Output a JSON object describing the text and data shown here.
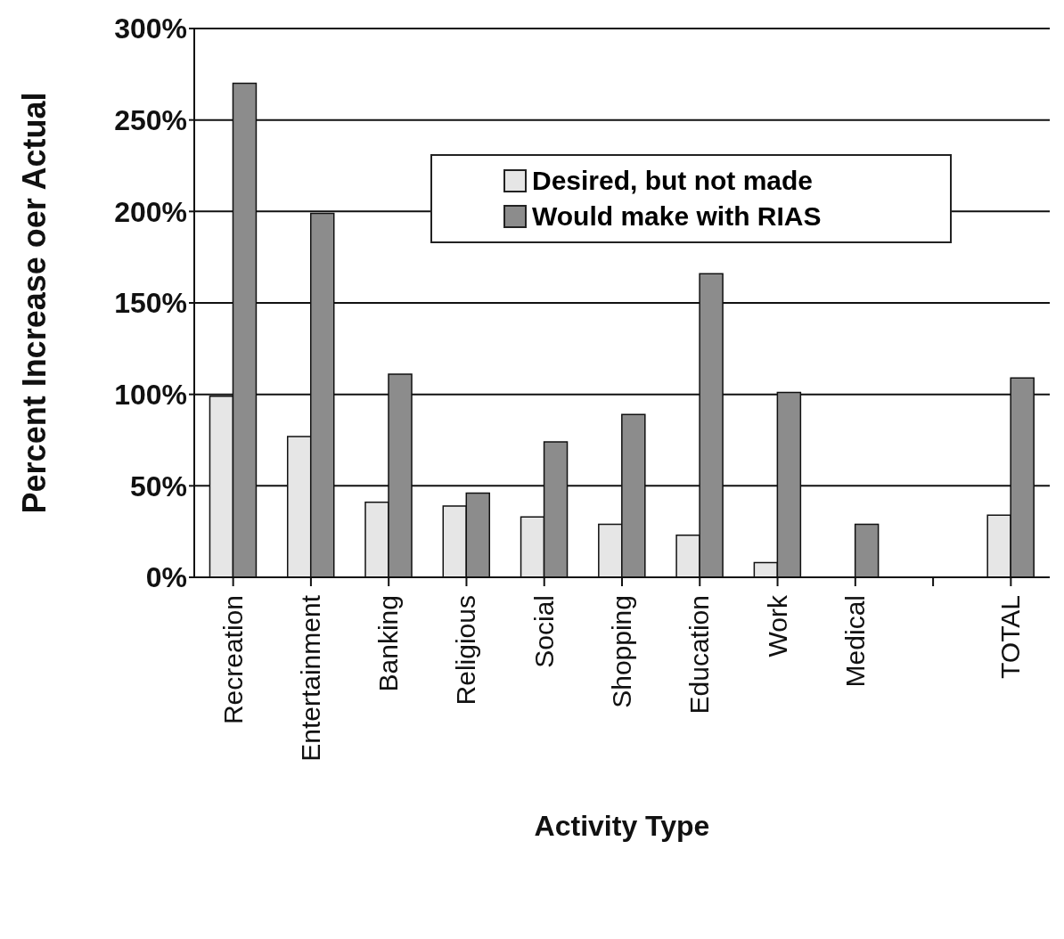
{
  "chart_data": {
    "type": "bar",
    "xlabel": "Activity Type",
    "ylabel": "Percent Increase oer Actual",
    "categories": [
      "Recreation",
      "Entertainment",
      "Banking",
      "Religious",
      "Social",
      "Shopping",
      "Education",
      "Work",
      "Medical",
      null,
      "TOTAL"
    ],
    "series": [
      {
        "name": "Desired, but not made",
        "color": "#e6e6e6",
        "values": [
          99,
          77,
          41,
          39,
          33,
          29,
          23,
          8,
          0,
          null,
          34
        ]
      },
      {
        "name": "Would make with RIAS",
        "color": "#8c8c8c",
        "values": [
          270,
          199,
          111,
          46,
          74,
          89,
          166,
          101,
          29,
          null,
          109
        ]
      }
    ],
    "ylim": [
      0,
      300
    ],
    "yticks": [
      {
        "value": 0,
        "label": "0%"
      },
      {
        "value": 50,
        "label": "50%"
      },
      {
        "value": 100,
        "label": "100%"
      },
      {
        "value": 150,
        "label": "150%"
      },
      {
        "value": 200,
        "label": "200%"
      },
      {
        "value": 250,
        "label": "250%"
      },
      {
        "value": 300,
        "label": "300%"
      }
    ],
    "grid": "y",
    "legend": "top"
  }
}
